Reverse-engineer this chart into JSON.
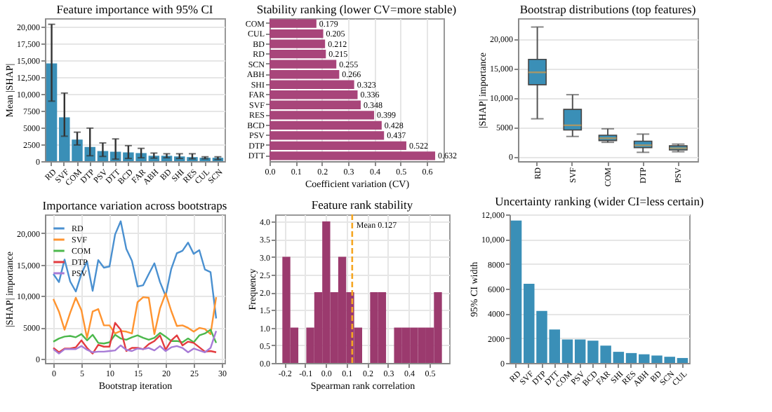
{
  "chart_data": [
    {
      "type": "bar",
      "title": "Feature importance with 95% CI",
      "ylabel": "Mean |SHAP|",
      "categories": [
        "RD",
        "SVF",
        "COM",
        "DTP",
        "PSV",
        "DTT",
        "BCD",
        "FAR",
        "ABH",
        "BD",
        "SHI",
        "RES",
        "CUL",
        "SCN"
      ],
      "values": [
        14500,
        6500,
        3200,
        2100,
        1500,
        1400,
        1300,
        1200,
        800,
        800,
        700,
        600,
        500,
        500
      ],
      "errors": [
        [
          8900,
          20300
        ],
        [
          3700,
          10100
        ],
        [
          2400,
          4300
        ],
        [
          800,
          4900
        ],
        [
          700,
          2700
        ],
        [
          300,
          3300
        ],
        [
          400,
          2300
        ],
        [
          500,
          1900
        ],
        [
          450,
          1200
        ],
        [
          500,
          1100
        ],
        [
          400,
          1100
        ],
        [
          350,
          1100
        ],
        [
          350,
          650
        ],
        [
          250,
          650
        ]
      ],
      "color": "#3a8fb7",
      "ylim": [
        0,
        21200
      ],
      "yticks": [
        0,
        2500,
        5000,
        7500,
        {
          "value": 10000,
          "label": "10,000"
        },
        {
          "value": 12500,
          "label": "12,500"
        },
        {
          "value": 15000,
          "label": "15,000"
        },
        {
          "value": 17500,
          "label": "17,500"
        },
        {
          "value": 20000,
          "label": "20,000"
        }
      ],
      "grid": "y"
    },
    {
      "type": "bar",
      "orientation": "horizontal",
      "title": "Stability ranking (lower CV=more stable)",
      "xlabel": "Coefficient variation (CV)",
      "categories": [
        "COM",
        "CUL",
        "BD",
        "RD",
        "SCN",
        "ABH",
        "SHI",
        "FAR",
        "SVF",
        "RES",
        "BCD",
        "PSV",
        "DTP",
        "DTT"
      ],
      "values": [
        0.179,
        0.205,
        0.212,
        0.215,
        0.255,
        0.266,
        0.323,
        0.336,
        0.348,
        0.399,
        0.428,
        0.437,
        0.522,
        0.632
      ],
      "color": "#a8457a",
      "data_labels": true,
      "xlim": [
        0,
        0.664
      ],
      "xticks": [
        {
          "value": 0,
          "label": "0.0"
        },
        0.1,
        0.2,
        0.3,
        0.4,
        0.5,
        0.6
      ],
      "grid": "x"
    },
    {
      "type": "box",
      "title": "Bootstrap distributions (top features)",
      "ylabel": "|SHAP| importance",
      "categories": [
        "RD",
        "SVF",
        "COM",
        "DTP",
        "PSV"
      ],
      "boxes": [
        {
          "low": 6400,
          "q1": 12200,
          "median": 14300,
          "q3": 16500,
          "high": 22000
        },
        {
          "low": 3400,
          "q1": 4500,
          "median": 5300,
          "q3": 8000,
          "high": 10500
        },
        {
          "low": 2400,
          "q1": 2700,
          "median": 3100,
          "q3": 3600,
          "high": 4700
        },
        {
          "low": 700,
          "q1": 1500,
          "median": 1900,
          "q3": 2600,
          "high": 3800
        },
        {
          "low": 800,
          "q1": 1100,
          "median": 1400,
          "q3": 1800,
          "high": 2100
        }
      ],
      "color": "#3a8fb7",
      "ylim": [
        -800,
        23500
      ],
      "yticks": [
        0,
        5000,
        {
          "value": 10000,
          "label": "10,000"
        },
        {
          "value": 15000,
          "label": "15,000"
        },
        {
          "value": 20000,
          "label": "20,000"
        }
      ],
      "grid": "y"
    },
    {
      "type": "line",
      "title": "Importance variation across bootstraps",
      "xlabel": "Bootstrap iteration",
      "ylabel": "|SHAP| importance",
      "x": [
        0,
        1,
        2,
        3,
        4,
        5,
        6,
        7,
        8,
        9,
        10,
        11,
        12,
        13,
        14,
        15,
        16,
        17,
        18,
        19,
        20,
        21,
        22,
        23,
        24,
        25,
        26,
        27,
        28,
        29
      ],
      "series": [
        {
          "name": "RD",
          "color": "#4a90d0",
          "values": [
            13500,
            12200,
            15800,
            12300,
            10700,
            13500,
            15500,
            10800,
            15700,
            14500,
            14700,
            19800,
            21900,
            17500,
            15600,
            11500,
            11700,
            13500,
            15200,
            12200,
            10000,
            14300,
            16800,
            17200,
            18500,
            16700,
            17300,
            14200,
            13800,
            6400
          ]
        },
        {
          "name": "SVF",
          "color": "#ff9430",
          "values": [
            9500,
            7500,
            4600,
            7300,
            9700,
            7700,
            3300,
            7500,
            7900,
            5300,
            5300,
            4000,
            4400,
            4300,
            4000,
            9000,
            9800,
            9700,
            3900,
            8000,
            10400,
            7600,
            5200,
            5300,
            4900,
            4300,
            4900,
            4700,
            3900,
            9800
          ]
        },
        {
          "name": "COM",
          "color": "#4cb84c",
          "values": [
            2700,
            3200,
            3500,
            3600,
            3400,
            3900,
            2900,
            3800,
            2500,
            2400,
            2600,
            3800,
            3200,
            3000,
            3400,
            3700,
            3300,
            3000,
            3300,
            4100,
            3500,
            2800,
            2800,
            2600,
            3200,
            2600,
            3700,
            4000,
            4600,
            2500
          ]
        },
        {
          "name": "DTP",
          "color": "#e33b3f",
          "values": [
            1700,
            1000,
            1600,
            1600,
            1800,
            2900,
            1700,
            800,
            2200,
            1900,
            1900,
            5700,
            4600,
            1200,
            1700,
            1700,
            1500,
            2300,
            2800,
            3700,
            1400,
            2900,
            3700,
            2100,
            2700,
            2500,
            1800,
            1100,
            1200,
            1000
          ]
        },
        {
          "name": "PSV",
          "color": "#a77bd6",
          "values": [
            1500,
            800,
            1500,
            1500,
            1500,
            2000,
            1400,
            1000,
            1100,
            1100,
            1200,
            1300,
            2100,
            1400,
            1200,
            1600,
            1500,
            1700,
            1300,
            2000,
            1200,
            1800,
            2000,
            1700,
            1000,
            1600,
            1300,
            1000,
            1700,
            4400
          ]
        }
      ],
      "xlim": [
        -1.5,
        30.5
      ],
      "xticks": [
        0,
        5,
        10,
        15,
        20,
        25,
        30
      ],
      "ylim": [
        -700,
        23000
      ],
      "yticks": [
        0,
        5000,
        {
          "value": 10000,
          "label": "10,000"
        },
        {
          "value": 15000,
          "label": "15,000"
        },
        {
          "value": 20000,
          "label": "20,000"
        }
      ],
      "grid": true,
      "legend": "top left"
    },
    {
      "type": "histogram",
      "title": "Feature rank stability",
      "xlabel": "Spearman rank correlation",
      "ylabel": "Frequency",
      "bins": [
        -0.21,
        -0.1715,
        -0.133,
        -0.0945,
        -0.056,
        -0.0175,
        0.021,
        0.0595,
        0.098,
        0.1365,
        0.175,
        0.2135,
        0.252,
        0.2905,
        0.329,
        0.3675,
        0.406,
        0.4445,
        0.483,
        0.5215,
        0.56
      ],
      "values": [
        3,
        1,
        0,
        1,
        2,
        4,
        2,
        3,
        2,
        1,
        0,
        2,
        2,
        0,
        1,
        1,
        1,
        1,
        1,
        2
      ],
      "color": "#9b3a6e",
      "xlim": [
        -0.245,
        0.595
      ],
      "xticks": [
        -0.2,
        -0.1,
        {
          "value": 0,
          "label": "0.0"
        },
        0.1,
        0.2,
        0.3,
        0.4,
        0.5
      ],
      "ylim": [
        0,
        4.2
      ],
      "yticks": [
        {
          "value": 0,
          "label": "0.0"
        },
        0.5,
        {
          "value": 1,
          "label": "1.0"
        },
        1.5,
        {
          "value": 2,
          "label": "2.0"
        },
        2.5,
        {
          "value": 3,
          "label": "3.0"
        },
        3.5,
        {
          "value": 4,
          "label": "4.0"
        }
      ],
      "ref_lines": [
        {
          "axis": "x",
          "value": 0.127,
          "label": "Mean 0.127",
          "color": "#f5a623",
          "line_style": "dashed"
        }
      ],
      "grid": true,
      "legend": "top right"
    },
    {
      "type": "bar",
      "title": "Uncertainty ranking (wider CI=less certain)",
      "ylabel": "95% CI width",
      "categories": [
        "RD",
        "SVF",
        "DTP",
        "DTT",
        "COM",
        "PSV",
        "BCD",
        "FAR",
        "SHI",
        "RES",
        "ABH",
        "BD",
        "SCN",
        "CUL"
      ],
      "values": [
        11500,
        6400,
        4200,
        2700,
        1900,
        1900,
        1800,
        1400,
        900,
        800,
        700,
        600,
        500,
        400
      ],
      "color": "#3a8fb7",
      "ylim": [
        0,
        12000
      ],
      "yticks": [
        0,
        2000,
        4000,
        6000,
        8000,
        {
          "value": 10000,
          "label": "10,000"
        },
        {
          "value": 12000,
          "label": "12,000"
        }
      ],
      "grid": "y"
    }
  ]
}
